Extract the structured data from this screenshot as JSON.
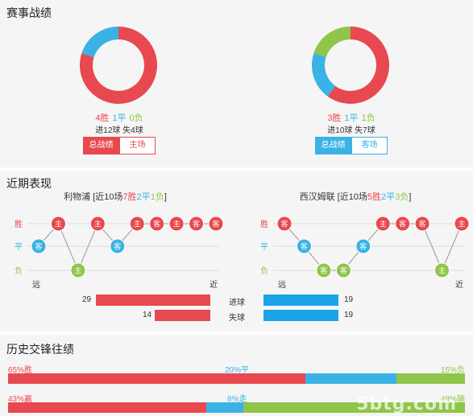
{
  "colors": {
    "win": "#e8484f",
    "draw": "#3ab2e5",
    "loss": "#8fc549",
    "bar_red": "#e8484f",
    "bar_blue": "#1aa3e8"
  },
  "record": {
    "title": "赛事战绩",
    "home": {
      "chart_data": {
        "type": "pie",
        "categories": [
          "胜",
          "平",
          "负"
        ],
        "values": [
          4,
          1,
          0
        ]
      },
      "win": "4胜",
      "draw": "1平",
      "loss": "0负",
      "goals": "进12球 失4球",
      "btn_total": "总战绩",
      "btn_side": "主场"
    },
    "away": {
      "chart_data": {
        "type": "pie",
        "categories": [
          "胜",
          "平",
          "负"
        ],
        "values": [
          3,
          1,
          1
        ]
      },
      "win": "3胜",
      "draw": "1平",
      "loss": "1负",
      "goals": "进10球 失7球",
      "btn_total": "总战绩",
      "btn_side": "客场"
    }
  },
  "recent": {
    "title": "近期表现",
    "y_labels": {
      "win": "胜",
      "draw": "平",
      "loss": "负"
    },
    "x_far": "远",
    "x_near": "近",
    "home": {
      "team": "利物浦",
      "summary_pre": "[近10场",
      "w": "7胜",
      "d": "2平",
      "l": "1负",
      "summary_post": "]",
      "chart_data": {
        "type": "line",
        "results": [
          "draw",
          "win",
          "loss",
          "win",
          "draw",
          "win",
          "win",
          "win",
          "win",
          "win"
        ],
        "venues": [
          "客",
          "主",
          "主",
          "主",
          "客",
          "主",
          "客",
          "主",
          "客",
          "客"
        ]
      },
      "goals_for": 29,
      "goals_against": 14
    },
    "away": {
      "team": "西汉姆联",
      "summary_pre": "[近10场",
      "w": "5胜",
      "d": "2平",
      "l": "3负",
      "summary_post": "]",
      "chart_data": {
        "type": "line",
        "results": [
          "win",
          "draw",
          "loss",
          "loss",
          "draw",
          "win",
          "win",
          "win",
          "loss",
          "win"
        ],
        "venues": [
          "客",
          "客",
          "客",
          "客",
          "客",
          "主",
          "客",
          "客",
          "主",
          "主"
        ]
      },
      "goals_for": 19,
      "goals_against": 19
    },
    "lbl_for": "进球",
    "lbl_against": "失球"
  },
  "history": {
    "title": "历史交锋往绩",
    "row1": {
      "left": "65%胜",
      "mid": "20%平",
      "right": "15%负",
      "chart_data": {
        "type": "bar",
        "categories": [
          "胜",
          "平",
          "负"
        ],
        "values": [
          65,
          20,
          15
        ]
      }
    },
    "row2": {
      "left": "43%赢",
      "mid": "8%走",
      "right": "48%输",
      "chart_data": {
        "type": "bar",
        "categories": [
          "赢",
          "走",
          "输"
        ],
        "values": [
          43,
          8,
          48
        ]
      }
    }
  },
  "watermark": "5btg.com"
}
